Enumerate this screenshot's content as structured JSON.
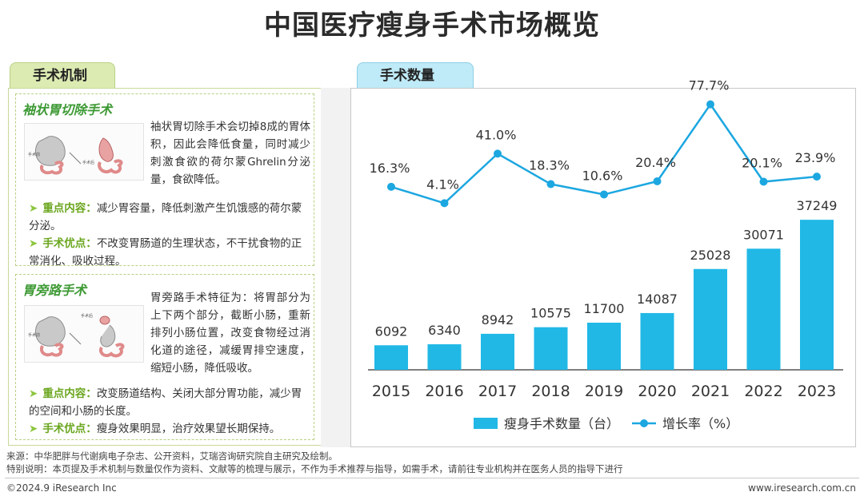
{
  "title": "中国医疗瘦身手术市场概览",
  "left_tab": "手术机制",
  "right_tab": "手术数量",
  "procedures": [
    {
      "title": "袖状胃切除手术",
      "desc": "袖状胃切除手术会切掉8成的胃体积，因此会降低食量，同时减少刺激食欲的荷尔蒙Ghrelin分泌量，食欲降低。",
      "diagram_labels": [
        "手术前",
        "手术后"
      ],
      "key_label": "重点内容：",
      "key_text": "减少胃容量，降低刺激产生饥饿感的荷尔蒙分泌。",
      "adv_label": "手术优点：",
      "adv_text": "不改变胃肠道的生理状态，不干扰食物的正常消化、吸收过程。"
    },
    {
      "title": "胃旁路手术",
      "desc": "胃旁路手术特征为：将胃部分为上下两个部分，截断小肠，重新排列小肠位置，改变食物经过消化道的途径，减缓胃排空速度，缩短小肠，降低吸收。",
      "diagram_labels": [
        "手术前",
        "手术后"
      ],
      "key_label": "重点内容：",
      "key_text": "改变肠道结构、关闭大部分胃功能，减少胃的空间和小肠的长度。",
      "adv_label": "手术优点：",
      "adv_text": "瘦身效果明显，治疗效果望长期保持。"
    }
  ],
  "chart_data": {
    "type": "bar+line",
    "categories": [
      "2015",
      "2016",
      "2017",
      "2018",
      "2019",
      "2020",
      "2021",
      "2022",
      "2023"
    ],
    "series": [
      {
        "name": "瘦身手术数量（台）",
        "type": "bar",
        "values": [
          6092,
          6340,
          8942,
          10575,
          11700,
          14087,
          25028,
          30071,
          37249
        ],
        "color": "#21b8e6"
      },
      {
        "name": "增长率（%）",
        "type": "line",
        "values": [
          16.3,
          4.1,
          41.0,
          18.3,
          10.6,
          20.4,
          77.7,
          20.1,
          23.9
        ],
        "labels": [
          "16.3%",
          "4.1%",
          "41.0%",
          "18.3%",
          "10.6%",
          "20.4%",
          "77.7%",
          "20.1%",
          "23.9%"
        ],
        "color": "#1ca7e0"
      }
    ],
    "bar_ylim": [
      0,
      70000
    ],
    "line_ylim": [
      -120,
      90
    ],
    "legend_position": "bottom"
  },
  "footer": {
    "source": "来源：中华肥胖与代谢病电子杂志、公开资料，艾瑞咨询研究院自主研究及绘制。",
    "note": "特别说明：本页提及手术机制与数量仅作为资料、文献等的梳理与展示，不作为手术推荐与指导，如需手术，请前往专业机构并在医务人员的指导下进行",
    "copyright": "©2024.9 iResearch Inc",
    "url": "www.iresearch.com.cn"
  }
}
